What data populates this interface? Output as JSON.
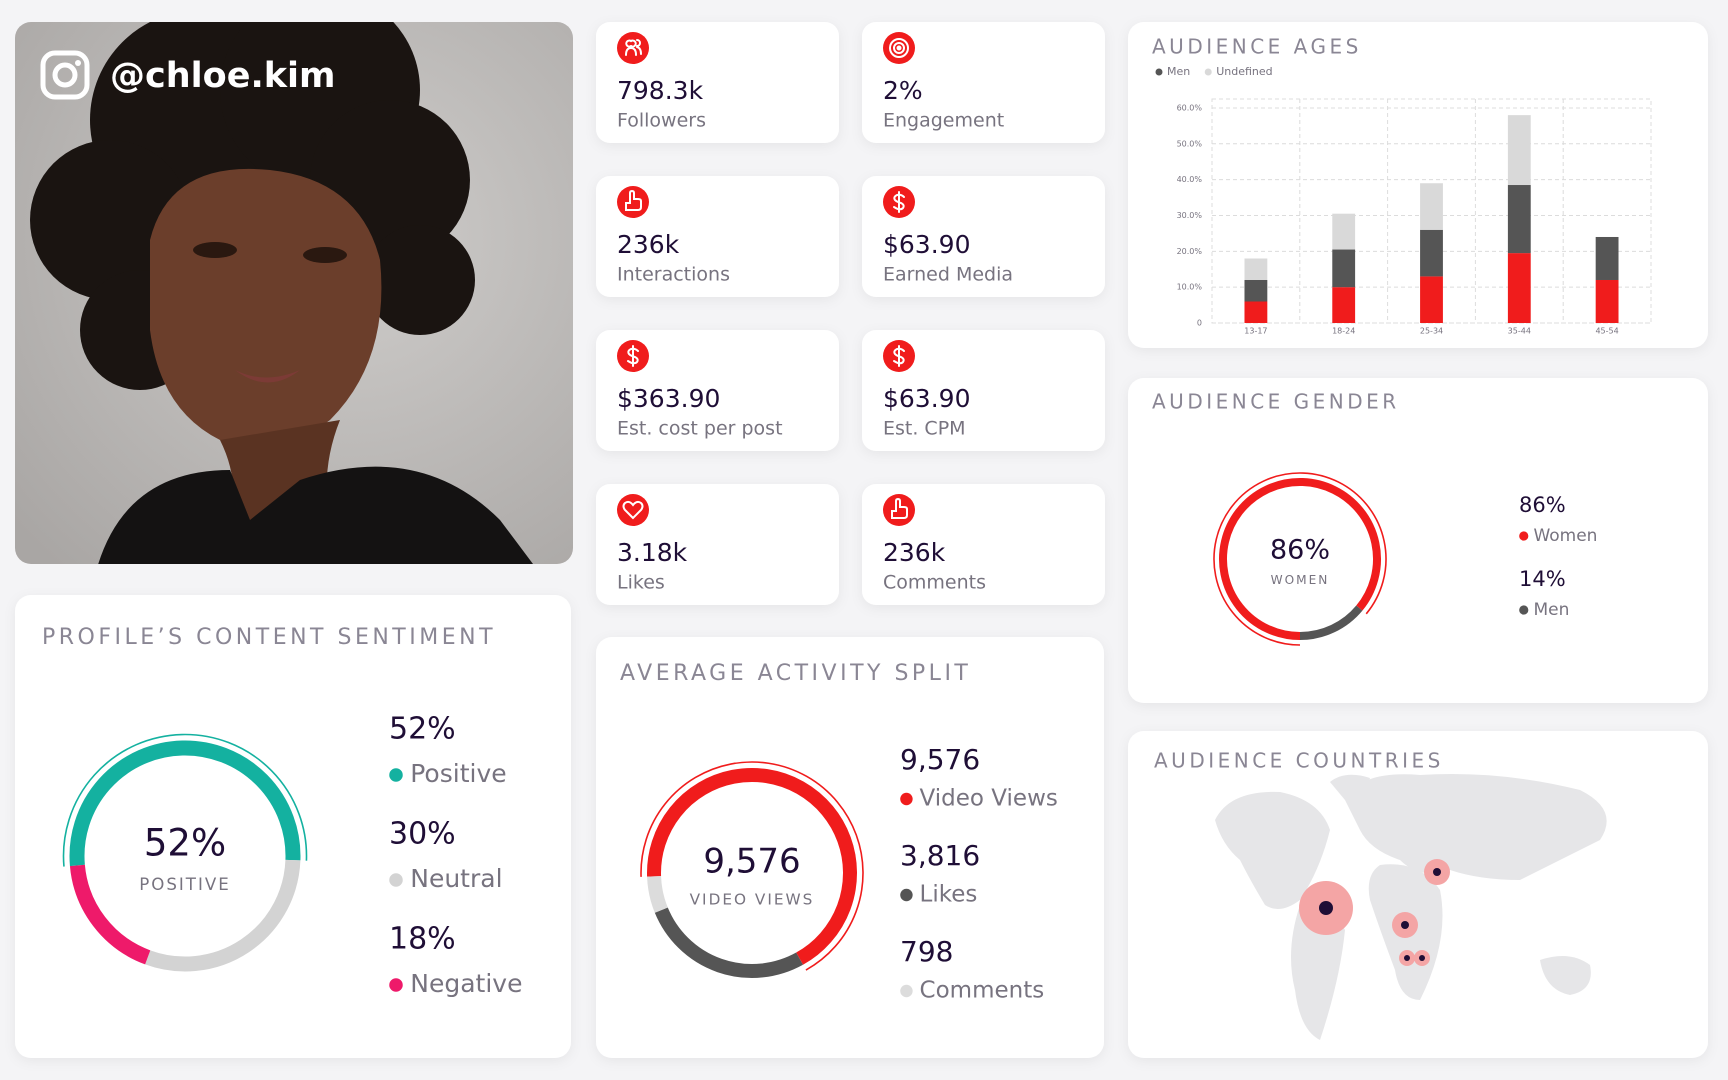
{
  "profile": {
    "handle": "@chloe.kim"
  },
  "stats": [
    {
      "value": "798.3k",
      "label": "Followers"
    },
    {
      "value": "2%",
      "label": "Engagement"
    },
    {
      "value": "236k",
      "label": "Interactions"
    },
    {
      "value": "$63.90",
      "label": "Earned Media"
    },
    {
      "value": "$363.90",
      "label": "Est. cost per post"
    },
    {
      "value": "$63.90",
      "label": "Est. CPM"
    },
    {
      "value": "3.18k",
      "label": "Likes"
    },
    {
      "value": "236k",
      "label": "Comments"
    }
  ],
  "ages": {
    "title": "AUDIENCE AGES",
    "type": "bar",
    "stacked": true,
    "grid": true,
    "categories": [
      "13-17",
      "18-24",
      "25-34",
      "35-44",
      "45-54"
    ],
    "series": [
      {
        "color": "#f01c1c",
        "values": [
          6,
          10,
          13,
          19.5,
          12
        ]
      },
      {
        "name": "Men",
        "color": "#555555",
        "values": [
          6,
          10.5,
          13,
          19,
          12
        ]
      },
      {
        "name": "Undefined",
        "color": "#d9d9d9",
        "values": [
          6,
          10,
          13,
          19.5,
          0
        ]
      }
    ],
    "ylim": [
      0,
      62.5
    ],
    "yticks": [
      0,
      {
        "value": 10,
        "label": "10.0%"
      },
      {
        "value": 20,
        "label": "20.0%"
      },
      {
        "value": 30,
        "label": "30.0%"
      },
      {
        "value": 40,
        "label": "40.0%"
      },
      {
        "value": 50,
        "label": "50.0%"
      },
      {
        "value": 60,
        "label": "60.0%"
      }
    ]
  },
  "gender": {
    "title": "AUDIENCE GENDER",
    "center_value": "86%",
    "center_label": "WOMEN",
    "items": [
      {
        "value": 86,
        "label": "86%",
        "name": "Women",
        "color": "#f01c1c"
      },
      {
        "value": 14,
        "label": "14%",
        "name": "Men",
        "color": "#555555"
      }
    ]
  },
  "sentiment": {
    "title": "PROFILE’S CONTENT SENTIMENT",
    "center_value": "52%",
    "center_label": "POSITIVE",
    "items": [
      {
        "value": 52,
        "label": "52%",
        "name": "Positive",
        "color": "#14b1a0"
      },
      {
        "value": 30,
        "label": "30%",
        "name": "Neutral",
        "color": "#d3d3d3"
      },
      {
        "value": 18,
        "label": "18%",
        "name": "Negative",
        "color": "#ee1a6a"
      }
    ]
  },
  "activity": {
    "title": "AVERAGE ACTIVITY SPLIT",
    "center_value": "9,576",
    "center_label": "VIDEO VIEWS",
    "items": [
      {
        "value": 9576,
        "label": "9,576",
        "name": "Video Views",
        "color": "#f01c1c"
      },
      {
        "value": 3816,
        "label": "3,816",
        "name": "Likes",
        "color": "#555555"
      },
      {
        "value": 798,
        "label": "798",
        "name": "Comments",
        "color": "#dcdcdc"
      }
    ]
  },
  "countries": {
    "title": "AUDIENCE COUNTRIES"
  }
}
